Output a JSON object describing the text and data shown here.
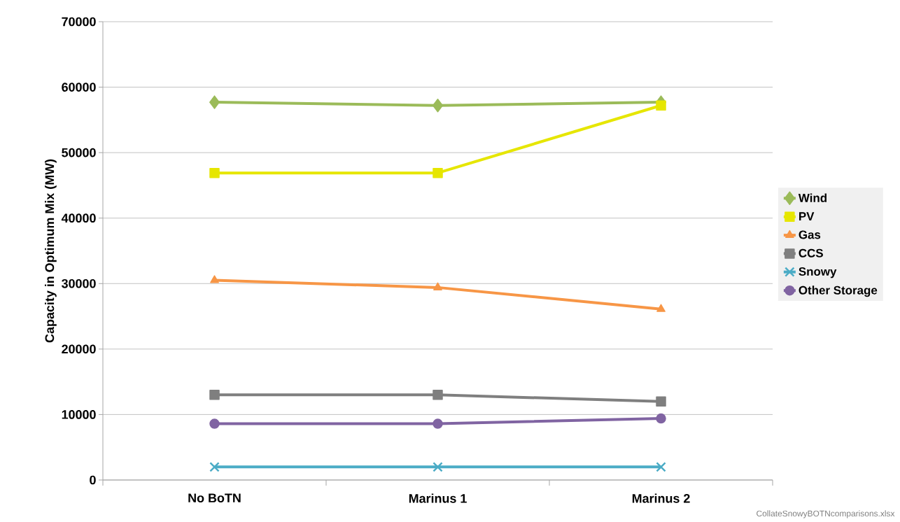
{
  "chart_data": {
    "type": "line",
    "ylabel": "Capacity in Optimum Mix (MW)",
    "categories": [
      "No BoTN",
      "Marinus 1",
      "Marinus 2"
    ],
    "series": [
      {
        "name": "Wind",
        "color": "#9bbb59",
        "marker": "diamond",
        "values": [
          57700,
          57200,
          57700
        ]
      },
      {
        "name": "PV",
        "color": "#e6e600",
        "marker": "square",
        "values": [
          46900,
          46900,
          57200
        ]
      },
      {
        "name": "Gas",
        "color": "#f79646",
        "marker": "triangle",
        "values": [
          30500,
          29400,
          26100
        ]
      },
      {
        "name": "CCS",
        "color": "#7f7f7f",
        "marker": "square",
        "values": [
          13000,
          13000,
          12000
        ]
      },
      {
        "name": "Snowy",
        "color": "#4bacc6",
        "marker": "cross",
        "values": [
          2000,
          2000,
          2000
        ]
      },
      {
        "name": "Other Storage",
        "color": "#8064a2",
        "marker": "circle",
        "values": [
          8600,
          8600,
          9400
        ]
      }
    ],
    "ylim": [
      0,
      70000
    ],
    "yticks": [
      0,
      10000,
      20000,
      30000,
      40000,
      50000,
      60000,
      70000
    ],
    "grid": "y",
    "legend": "right",
    "line_style": "solid",
    "annotations": [
      "CollateSnowyBOTNcomparisons.xlsx"
    ]
  }
}
